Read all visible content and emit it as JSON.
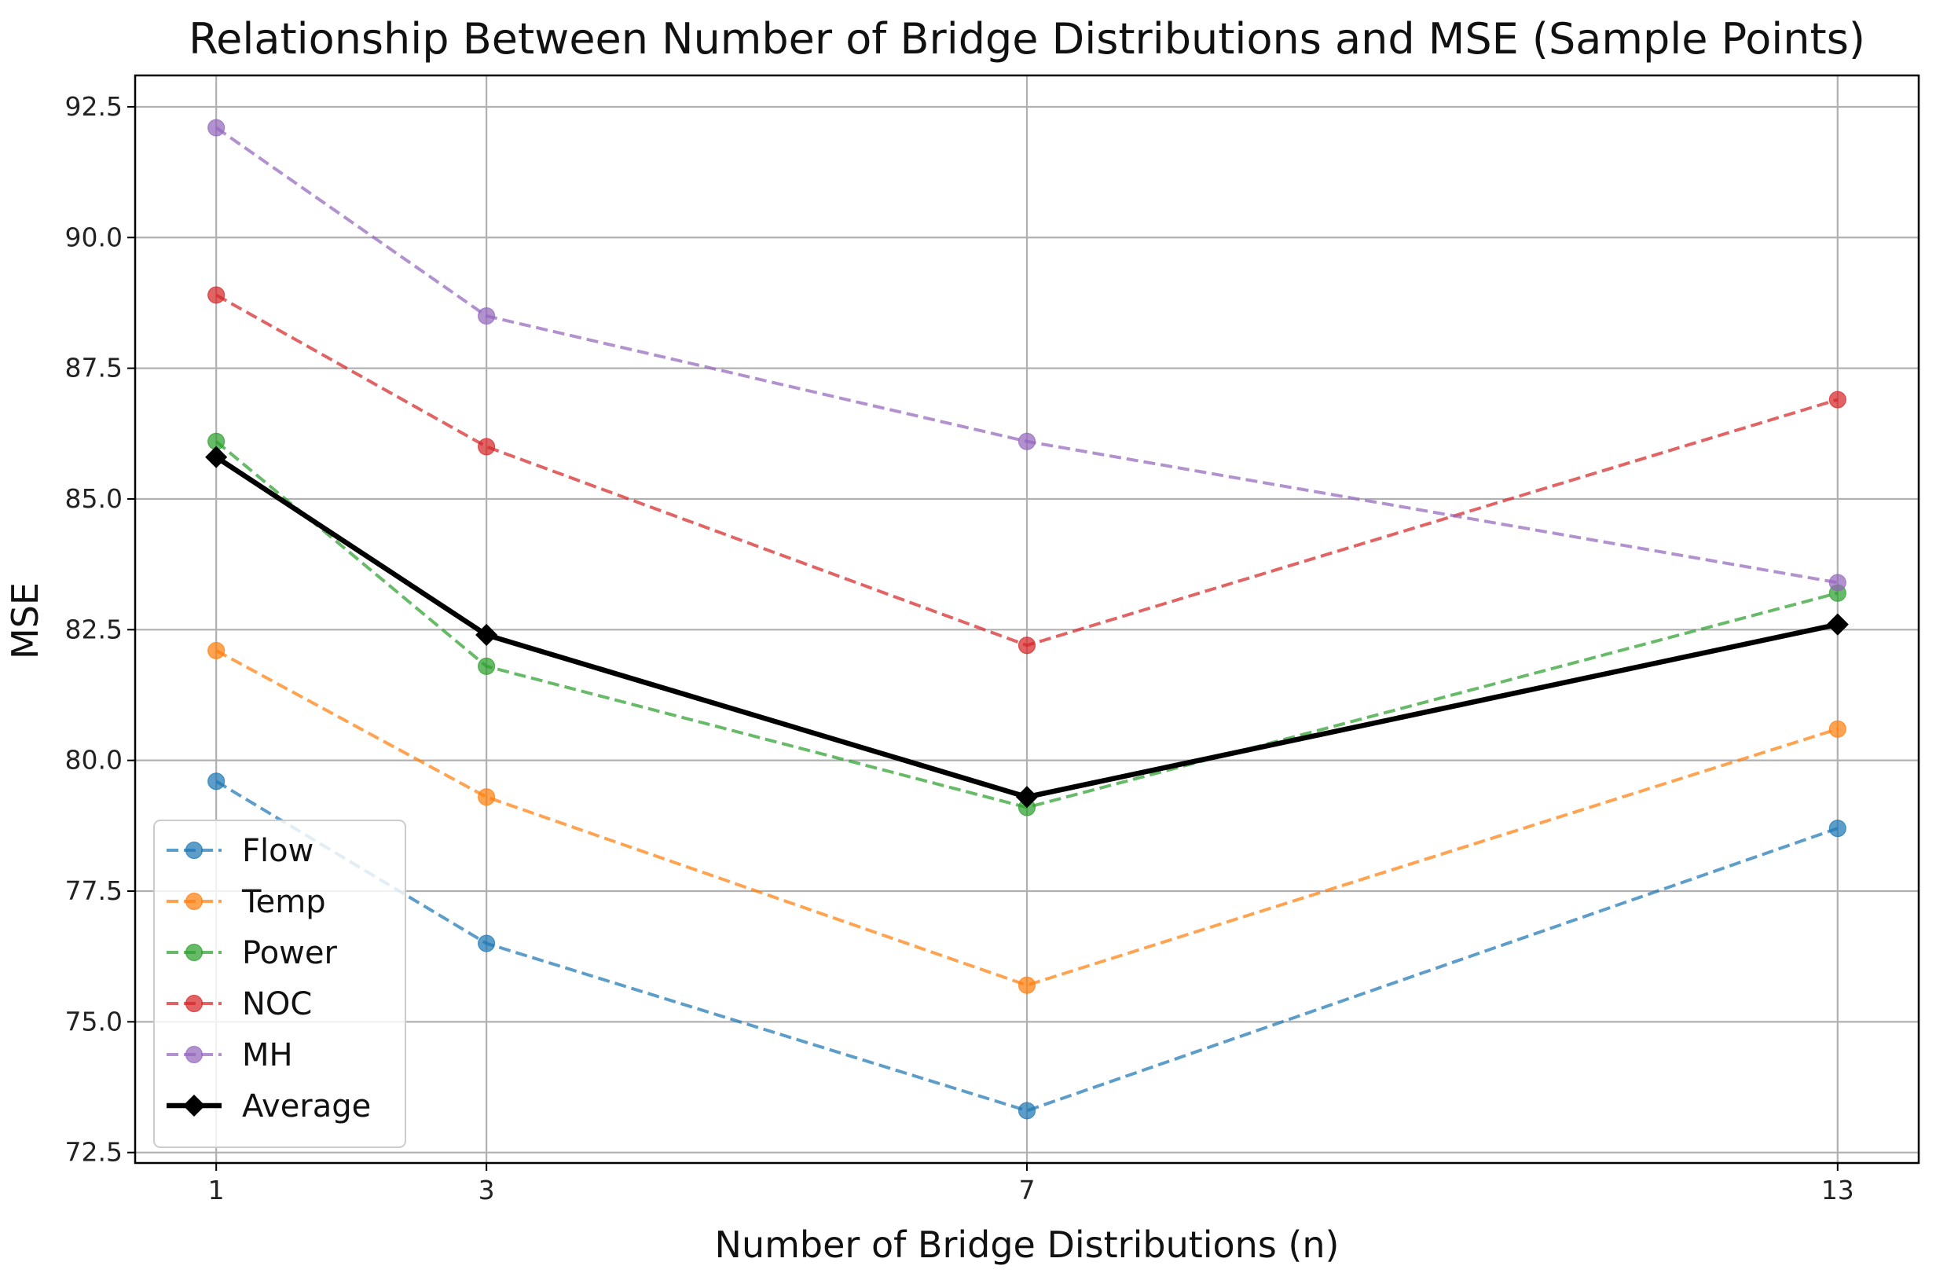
{
  "chart_data": {
    "type": "line",
    "title": "Relationship Between Number of Bridge Distributions and MSE (Sample Points)",
    "xlabel": "Number of Bridge Distributions (n)",
    "ylabel": "MSE",
    "x": [
      1,
      3,
      7,
      13
    ],
    "xlim": [
      0.4,
      13.6
    ],
    "ylim": [
      72.3,
      93.1
    ],
    "yticks": [
      72.5,
      75.0,
      77.5,
      80.0,
      82.5,
      85.0,
      87.5,
      90.0,
      92.5
    ],
    "ytick_labels": [
      "72.5",
      "75.0",
      "77.5",
      "80.0",
      "82.5",
      "85.0",
      "87.5",
      "90.0",
      "92.5"
    ],
    "xticks": [
      1,
      3,
      7,
      13
    ],
    "xtick_labels": [
      "1",
      "3",
      "7",
      "13"
    ],
    "grid": true,
    "legend_position": "lower-left",
    "series": [
      {
        "name": "Flow",
        "values": [
          79.6,
          76.5,
          73.3,
          78.7
        ],
        "color": "#1f77b4",
        "style": "dashed",
        "marker": "circle"
      },
      {
        "name": "Temp",
        "values": [
          82.1,
          79.3,
          75.7,
          80.6
        ],
        "color": "#ff7f0e",
        "style": "dashed",
        "marker": "circle"
      },
      {
        "name": "Power",
        "values": [
          86.1,
          81.8,
          79.1,
          83.2
        ],
        "color": "#2ca02c",
        "style": "dashed",
        "marker": "circle"
      },
      {
        "name": "NOC",
        "values": [
          88.9,
          86.0,
          82.2,
          86.9
        ],
        "color": "#d62728",
        "style": "dashed",
        "marker": "circle"
      },
      {
        "name": "MH",
        "values": [
          92.1,
          88.5,
          86.1,
          83.4
        ],
        "color": "#9467bd",
        "style": "dashed",
        "marker": "circle"
      },
      {
        "name": "Average",
        "values": [
          85.8,
          82.4,
          79.3,
          82.6
        ],
        "color": "#000000",
        "style": "solid",
        "marker": "diamond"
      }
    ]
  }
}
